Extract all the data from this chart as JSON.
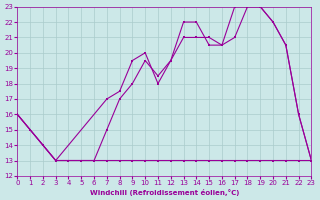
{
  "xlabel": "Windchill (Refroidissement éolien,°C)",
  "bg_color": "#cce8e8",
  "grid_color": "#aacccc",
  "line_color": "#990099",
  "xlim": [
    0,
    23
  ],
  "ylim": [
    12,
    23
  ],
  "xticks": [
    0,
    1,
    2,
    3,
    4,
    5,
    6,
    7,
    8,
    9,
    10,
    11,
    12,
    13,
    14,
    15,
    16,
    17,
    18,
    19,
    20,
    21,
    22,
    23
  ],
  "yticks": [
    12,
    13,
    14,
    15,
    16,
    17,
    18,
    19,
    20,
    21,
    22,
    23
  ],
  "line1_x": [
    0,
    1,
    2,
    3,
    4,
    5,
    6,
    7,
    8,
    9,
    10,
    11,
    12,
    13,
    14,
    15,
    16,
    17,
    18,
    19,
    20,
    21,
    22,
    23
  ],
  "line1_y": [
    16,
    15,
    14,
    13,
    13,
    13,
    13,
    13,
    13,
    13,
    13,
    13,
    13,
    13,
    13,
    13,
    13,
    13,
    13,
    13,
    13,
    13,
    13,
    13
  ],
  "line2_x": [
    0,
    1,
    2,
    3,
    4,
    5,
    6,
    7,
    8,
    9,
    10,
    11,
    12,
    13,
    14,
    15,
    16,
    17,
    18,
    19,
    20,
    21,
    22,
    23
  ],
  "line2_y": [
    16,
    15,
    14,
    13,
    13,
    13,
    13,
    15,
    17,
    18,
    19.5,
    18.5,
    19.5,
    22,
    22,
    20.5,
    20.5,
    23,
    23,
    23,
    22,
    20.5,
    16,
    13
  ],
  "line3_x": [
    0,
    1,
    2,
    3,
    7,
    8,
    9,
    10,
    11,
    12,
    13,
    14,
    15,
    16,
    17,
    18,
    19,
    20,
    21,
    22,
    23
  ],
  "line3_y": [
    16,
    15,
    14,
    13,
    17,
    17.5,
    19.5,
    20,
    18,
    19.5,
    21,
    21,
    21,
    20.5,
    21,
    23,
    23,
    22,
    20.5,
    16,
    13
  ]
}
